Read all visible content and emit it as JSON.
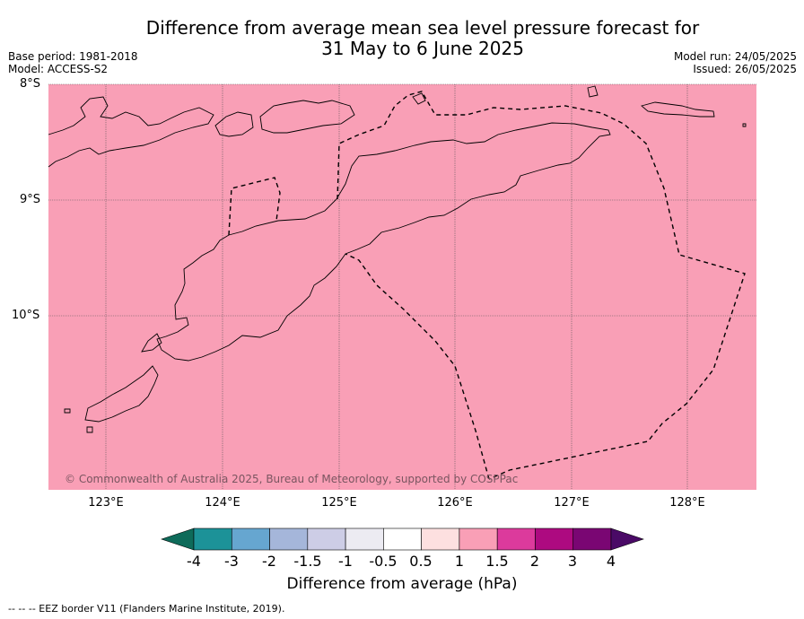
{
  "title_line1": "Difference from average mean sea level pressure forecast for",
  "title_line2": "31 May to 6 June 2025",
  "base_period": "Base period: 1981-2018",
  "model": "Model: ACCESS-S2",
  "model_run": "Model run: 24/05/2025",
  "issued": "Issued: 26/05/2025",
  "lat_labels": [
    "8°S",
    "9°S",
    "10°S"
  ],
  "lon_labels": [
    "123°E",
    "124°E",
    "125°E",
    "126°E",
    "127°E",
    "128°E"
  ],
  "copyright": "© Commonwealth of Australia 2025, Bureau of Meteorology, supported by COSPPac",
  "colorbar": {
    "ticks": [
      "-4",
      "-3",
      "-2",
      "-1.5",
      "-1",
      "-0.5",
      "0.5",
      "1",
      "1.5",
      "2",
      "3",
      "4"
    ],
    "title": "Difference from average (hPa)",
    "colors": [
      "#0e6b5a",
      "#1c9298",
      "#66a6d0",
      "#a5b6da",
      "#cdcde6",
      "#ecebf2",
      "#ffffff",
      "#fde0e0",
      "#f99fb6",
      "#dc3a9c",
      "#ad0a80",
      "#7a0673",
      "#4a0a66"
    ]
  },
  "map_fill_color": "#f99fb6",
  "footnote": "--  --  -- EEZ border V11 (Flanders Marine Institute, 2019)."
}
